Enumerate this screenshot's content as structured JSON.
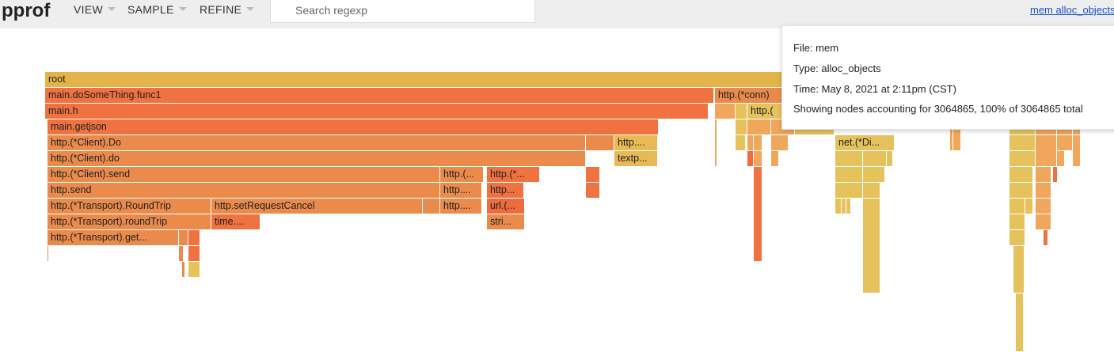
{
  "app": {
    "title": "pprof"
  },
  "menu": [
    {
      "label": "VIEW"
    },
    {
      "label": "SAMPLE"
    },
    {
      "label": "REFINE"
    }
  ],
  "search": {
    "placeholder": "Search regexp"
  },
  "top_link": "mem alloc_objects",
  "tooltip": {
    "file": "File: mem",
    "type": "Type: alloc_objects",
    "time": "Time: May 8, 2021 at 2:11pm (CST)",
    "showing": "Showing nodes accounting for 3064865, 100% of 3064865 total"
  },
  "colors": {
    "root": "#e3b449",
    "deep_orange": "#ef7240",
    "orange": "#eb8b4b",
    "light_orange": "#f0a65b",
    "yellow": "#e6c25c",
    "gold": "#e9b954"
  },
  "frames": [
    {
      "label": "root"
    },
    {
      "label": "main.doSomeThing.func1"
    },
    {
      "label": "http.(*conn)"
    },
    {
      "label": "main.h"
    },
    {
      "label": "http.("
    },
    {
      "label": "main.getjson"
    },
    {
      "label": "http.(*Client).Do"
    },
    {
      "label": "http...."
    },
    {
      "label": "net.(*Di..."
    },
    {
      "label": "http.(*Client).do"
    },
    {
      "label": "textp..."
    },
    {
      "label": "http.(*Client).send"
    },
    {
      "label": "http.(..."
    },
    {
      "label": "http.(*..."
    },
    {
      "label": "http.send"
    },
    {
      "label": "http...."
    },
    {
      "label": "http..."
    },
    {
      "label": "http.(*Transport).RoundTrip"
    },
    {
      "label": "http.setRequestCancel"
    },
    {
      "label": "http...."
    },
    {
      "label": "url.(..."
    },
    {
      "label": "http.(*Transport).roundTrip"
    },
    {
      "label": "time...."
    },
    {
      "label": "stri..."
    },
    {
      "label": "http.(*Transport).get..."
    }
  ]
}
